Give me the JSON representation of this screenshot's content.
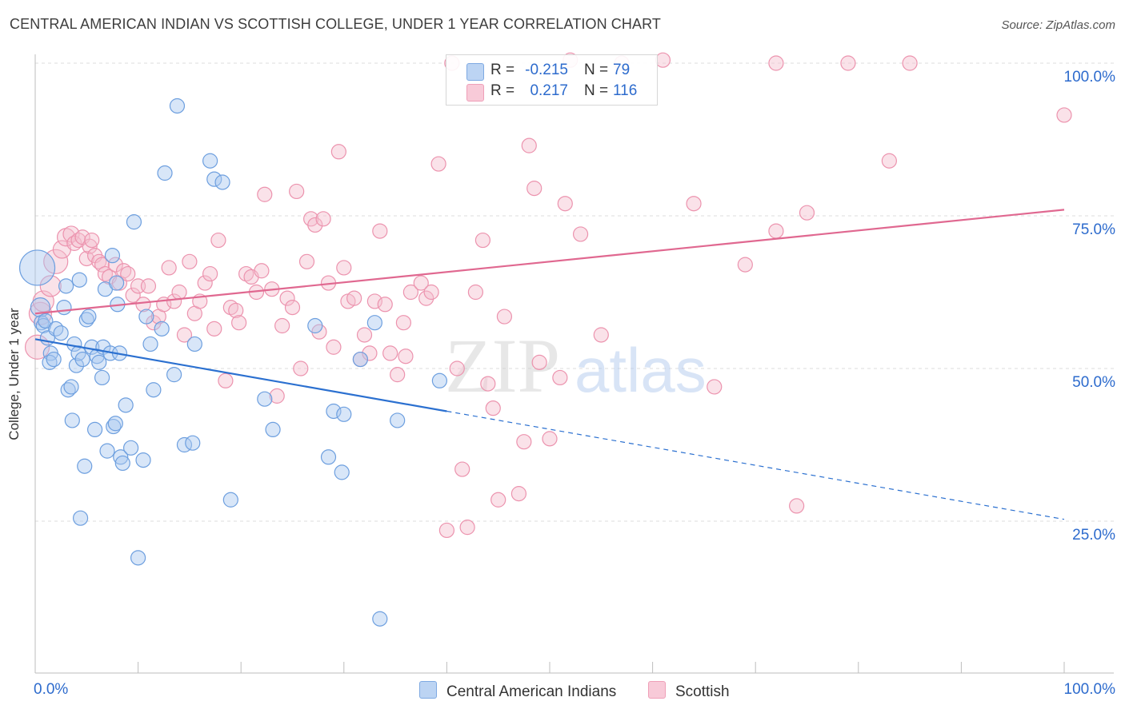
{
  "title": "CENTRAL AMERICAN INDIAN VS SCOTTISH COLLEGE, UNDER 1 YEAR CORRELATION CHART",
  "source": "Source: ZipAtlas.com",
  "watermark": {
    "zip": "ZIP",
    "atlas": "atlas"
  },
  "colors": {
    "blue_fill": "#a9c8ef",
    "blue_stroke": "#6d9fdf",
    "blue_line": "#2b70d0",
    "pink_fill": "#f5bfcf",
    "pink_stroke": "#ec93ae",
    "pink_line": "#e06890",
    "tick_text": "#2d6bcd",
    "grid": "#dedede"
  },
  "legend": {
    "rows": [
      {
        "r_label": "R =",
        "r_value": "-0.215",
        "n_label": "N =",
        "n_value": "79"
      },
      {
        "r_label": "R =",
        "r_value": "0.217",
        "n_label": "N =",
        "n_value": "116"
      }
    ]
  },
  "chart_data": {
    "type": "scatter",
    "xlabel": "",
    "ylabel": "College, Under 1 year",
    "xlim": [
      0,
      100
    ],
    "ylim": [
      0,
      104
    ],
    "x_tick_labels": [
      "0.0%",
      "100.0%"
    ],
    "y_ticks": [
      25,
      50,
      75,
      100
    ],
    "y_tick_labels": [
      "25.0%",
      "50.0%",
      "75.0%",
      "100.0%"
    ],
    "grid": "horizontal dashed",
    "legend_position": "top-center",
    "series": [
      {
        "name": "Central American Indians",
        "color": "blue",
        "trend": {
          "x0": 0,
          "y0": 54.8,
          "x1": 40.0,
          "y1": 43.0,
          "dash_to_x": 100,
          "dash_to_y": 25.3
        },
        "points": [
          [
            0.2,
            66.5,
            22
          ],
          [
            0.5,
            60.0,
            12
          ],
          [
            0.6,
            57.5,
            9
          ],
          [
            0.8,
            57.0,
            9
          ],
          [
            1.0,
            57.8,
            9
          ],
          [
            1.2,
            55.0,
            9
          ],
          [
            1.5,
            52.5,
            9
          ],
          [
            1.4,
            51.0,
            9
          ],
          [
            1.8,
            51.5,
            9
          ],
          [
            2.0,
            56.5,
            9
          ],
          [
            2.5,
            55.8,
            9
          ],
          [
            3.0,
            63.5,
            9
          ],
          [
            2.8,
            60.0,
            9
          ],
          [
            3.2,
            46.5,
            9
          ],
          [
            3.5,
            47.0,
            9
          ],
          [
            3.6,
            41.5,
            9
          ],
          [
            3.8,
            54.0,
            9
          ],
          [
            4.0,
            50.5,
            9
          ],
          [
            4.2,
            52.5,
            9
          ],
          [
            4.3,
            64.5,
            9
          ],
          [
            4.4,
            25.5,
            9
          ],
          [
            4.6,
            51.5,
            9
          ],
          [
            4.8,
            34.0,
            9
          ],
          [
            5.0,
            58.0,
            9
          ],
          [
            5.2,
            58.5,
            9
          ],
          [
            5.5,
            53.5,
            9
          ],
          [
            5.8,
            40.0,
            9
          ],
          [
            6.0,
            52.0,
            9
          ],
          [
            6.2,
            51.0,
            9
          ],
          [
            6.5,
            48.5,
            9
          ],
          [
            6.6,
            53.5,
            9
          ],
          [
            6.8,
            63.0,
            9
          ],
          [
            7.0,
            36.5,
            9
          ],
          [
            7.3,
            52.5,
            9
          ],
          [
            7.6,
            40.5,
            9
          ],
          [
            7.8,
            41.0,
            9
          ],
          [
            7.5,
            68.5,
            9
          ],
          [
            7.9,
            64.0,
            9
          ],
          [
            8.0,
            60.5,
            9
          ],
          [
            8.2,
            52.5,
            9
          ],
          [
            8.3,
            35.5,
            9
          ],
          [
            8.5,
            34.5,
            9
          ],
          [
            8.8,
            44.0,
            9
          ],
          [
            9.3,
            37.0,
            9
          ],
          [
            9.6,
            74.0,
            9
          ],
          [
            10.0,
            19.0,
            9
          ],
          [
            10.5,
            35.0,
            9
          ],
          [
            10.8,
            58.5,
            9
          ],
          [
            11.2,
            54.0,
            9
          ],
          [
            11.5,
            46.5,
            9
          ],
          [
            12.3,
            56.5,
            9
          ],
          [
            12.6,
            82.0,
            9
          ],
          [
            13.5,
            49.0,
            9
          ],
          [
            13.8,
            93.0,
            9
          ],
          [
            14.5,
            37.5,
            9
          ],
          [
            15.3,
            37.8,
            9
          ],
          [
            15.5,
            54.0,
            9
          ],
          [
            17.0,
            84.0,
            9
          ],
          [
            17.4,
            81.0,
            9
          ],
          [
            18.2,
            80.5,
            9
          ],
          [
            19.0,
            28.5,
            9
          ],
          [
            22.3,
            45.0,
            9
          ],
          [
            23.1,
            40.0,
            9
          ],
          [
            27.2,
            57.0,
            9
          ],
          [
            28.5,
            35.5,
            9
          ],
          [
            29.0,
            43.0,
            9
          ],
          [
            29.8,
            33.0,
            9
          ],
          [
            30.0,
            42.5,
            9
          ],
          [
            31.6,
            51.5,
            9
          ],
          [
            33.0,
            57.5,
            9
          ],
          [
            33.5,
            9.0,
            9
          ],
          [
            35.2,
            41.5,
            9
          ],
          [
            39.3,
            48.0,
            9
          ]
        ]
      },
      {
        "name": "Scottish",
        "color": "pink",
        "trend": {
          "x0": 0,
          "y0": 59.0,
          "x1": 100,
          "y1": 76.0
        },
        "points": [
          [
            0.2,
            53.5,
            15
          ],
          [
            0.5,
            59.0,
            14
          ],
          [
            0.8,
            61.0,
            13
          ],
          [
            1.5,
            63.5,
            13
          ],
          [
            2.0,
            67.5,
            15
          ],
          [
            2.6,
            69.5,
            11
          ],
          [
            3.0,
            71.5,
            11
          ],
          [
            3.5,
            72.0,
            10
          ],
          [
            3.8,
            70.5,
            9
          ],
          [
            4.2,
            71.0,
            9
          ],
          [
            4.6,
            71.5,
            9
          ],
          [
            5.0,
            68.0,
            9
          ],
          [
            5.3,
            70.0,
            9
          ],
          [
            5.5,
            71.0,
            9
          ],
          [
            5.8,
            68.5,
            9
          ],
          [
            6.2,
            67.5,
            9
          ],
          [
            6.5,
            67.0,
            9
          ],
          [
            6.8,
            65.5,
            9
          ],
          [
            7.2,
            65.0,
            9
          ],
          [
            7.8,
            67.0,
            9
          ],
          [
            8.2,
            64.0,
            9
          ],
          [
            8.6,
            66.0,
            9
          ],
          [
            9.0,
            65.5,
            9
          ],
          [
            9.5,
            62.0,
            9
          ],
          [
            10.0,
            63.5,
            9
          ],
          [
            10.5,
            60.5,
            9
          ],
          [
            11.0,
            63.5,
            9
          ],
          [
            11.5,
            57.5,
            9
          ],
          [
            12.0,
            58.5,
            9
          ],
          [
            12.5,
            60.5,
            9
          ],
          [
            13.0,
            66.5,
            9
          ],
          [
            13.5,
            61.0,
            9
          ],
          [
            14.0,
            62.5,
            9
          ],
          [
            14.5,
            55.5,
            9
          ],
          [
            15.0,
            67.5,
            9
          ],
          [
            15.5,
            59.0,
            9
          ],
          [
            16.0,
            61.0,
            9
          ],
          [
            16.5,
            64.0,
            9
          ],
          [
            17.0,
            65.5,
            9
          ],
          [
            17.4,
            56.5,
            9
          ],
          [
            17.8,
            71.0,
            9
          ],
          [
            18.5,
            48.0,
            9
          ],
          [
            19.0,
            60.0,
            9
          ],
          [
            19.5,
            59.5,
            9
          ],
          [
            19.8,
            57.5,
            9
          ],
          [
            20.5,
            65.5,
            9
          ],
          [
            21.0,
            65.0,
            9
          ],
          [
            21.5,
            62.5,
            9
          ],
          [
            22.0,
            66.0,
            9
          ],
          [
            22.3,
            78.5,
            9
          ],
          [
            23.0,
            63.0,
            9
          ],
          [
            23.5,
            45.5,
            9
          ],
          [
            24.0,
            57.0,
            9
          ],
          [
            24.5,
            61.5,
            9
          ],
          [
            25.0,
            60.0,
            9
          ],
          [
            25.4,
            79.0,
            9
          ],
          [
            25.8,
            50.0,
            9
          ],
          [
            26.4,
            67.5,
            9
          ],
          [
            26.8,
            74.5,
            9
          ],
          [
            27.2,
            73.5,
            9
          ],
          [
            27.6,
            56.0,
            9
          ],
          [
            28.0,
            74.5,
            9
          ],
          [
            28.5,
            64.0,
            9
          ],
          [
            29.0,
            53.5,
            9
          ],
          [
            29.5,
            85.5,
            9
          ],
          [
            30.0,
            66.5,
            9
          ],
          [
            30.4,
            61.0,
            9
          ],
          [
            31.0,
            61.5,
            9
          ],
          [
            31.6,
            51.5,
            9
          ],
          [
            32.0,
            55.5,
            9
          ],
          [
            32.5,
            52.5,
            9
          ],
          [
            33.0,
            61.0,
            9
          ],
          [
            33.5,
            72.5,
            9
          ],
          [
            34.0,
            60.5,
            9
          ],
          [
            34.5,
            52.5,
            9
          ],
          [
            35.2,
            49.0,
            9
          ],
          [
            35.8,
            57.5,
            9
          ],
          [
            36.0,
            52.0,
            9
          ],
          [
            36.5,
            62.5,
            9
          ],
          [
            37.5,
            64.0,
            9
          ],
          [
            38.0,
            61.5,
            9
          ],
          [
            38.5,
            62.5,
            9
          ],
          [
            39.2,
            83.5,
            9
          ],
          [
            40.0,
            23.5,
            9
          ],
          [
            40.5,
            100.0,
            9
          ],
          [
            41.0,
            50.0,
            9
          ],
          [
            41.5,
            33.5,
            9
          ],
          [
            42.0,
            24.0,
            9
          ],
          [
            42.8,
            62.5,
            9
          ],
          [
            43.5,
            71.0,
            9
          ],
          [
            44.0,
            47.5,
            9
          ],
          [
            44.5,
            43.5,
            9
          ],
          [
            45.0,
            28.5,
            9
          ],
          [
            45.6,
            58.5,
            9
          ],
          [
            47.0,
            29.5,
            9
          ],
          [
            47.5,
            38.0,
            9
          ],
          [
            48.0,
            86.5,
            9
          ],
          [
            48.5,
            79.5,
            9
          ],
          [
            49.0,
            51.0,
            9
          ],
          [
            50.0,
            38.5,
            9
          ],
          [
            51.0,
            48.5,
            9
          ],
          [
            51.5,
            77.0,
            9
          ],
          [
            52.0,
            100.5,
            9
          ],
          [
            53.0,
            72.0,
            9
          ],
          [
            55.0,
            55.5,
            9
          ],
          [
            57.0,
            100.0,
            9
          ],
          [
            61.0,
            100.5,
            9
          ],
          [
            64.0,
            77.0,
            9
          ],
          [
            66.0,
            47.0,
            9
          ],
          [
            69.0,
            67.0,
            9
          ],
          [
            72.0,
            100.0,
            9
          ],
          [
            72.0,
            72.5,
            9
          ],
          [
            74.0,
            27.5,
            9
          ],
          [
            75.0,
            75.5,
            9
          ],
          [
            79.0,
            100.0,
            9
          ],
          [
            83.0,
            84.0,
            9
          ],
          [
            85.0,
            100.0,
            9
          ],
          [
            100.0,
            91.5,
            9
          ]
        ]
      }
    ]
  },
  "bottom_legend": {
    "items": [
      {
        "label": "Central American Indians"
      },
      {
        "label": "Scottish"
      }
    ]
  }
}
